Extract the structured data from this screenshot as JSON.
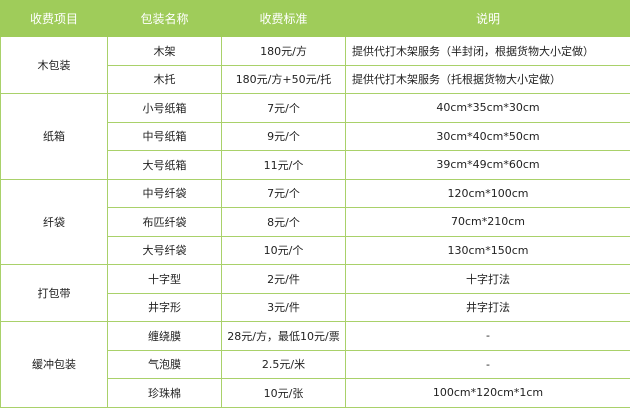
{
  "header": [
    "收费项目",
    "包装名称",
    "收费标准",
    "说明"
  ],
  "groups": [
    {
      "category": "木包装",
      "rows": [
        {
          "name": "木架",
          "price": "180元/方",
          "note": "提供代打木架服务（半封闭，根据货物大小定做）",
          "align": "left"
        },
        {
          "name": "木托",
          "price": "180元/方+50元/托",
          "note": "提供代打木架服务（托根据货物大小定做）",
          "align": "left"
        }
      ]
    },
    {
      "category": "纸箱",
      "rows": [
        {
          "name": "小号纸箱",
          "price": "7元/个",
          "note": "40cm*35cm*30cm"
        },
        {
          "name": "中号纸箱",
          "price": "9元/个",
          "note": "30cm*40cm*50cm"
        },
        {
          "name": "大号纸箱",
          "price": "11元/个",
          "note": "39cm*49cm*60cm"
        }
      ]
    },
    {
      "category": "纤袋",
      "rows": [
        {
          "name": "中号纤袋",
          "price": "7元/个",
          "note": "120cm*100cm"
        },
        {
          "name": "布匹纤袋",
          "price": "8元/个",
          "note": "70cm*210cm"
        },
        {
          "name": "大号纤袋",
          "price": "10元/个",
          "note": "130cm*150cm"
        }
      ]
    },
    {
      "category": "打包带",
      "rows": [
        {
          "name": "十字型",
          "price": "2元/件",
          "note": "十字打法"
        },
        {
          "name": "井字形",
          "price": "3元/件",
          "note": "井字打法"
        }
      ]
    },
    {
      "category": "缓冲包装",
      "rows": [
        {
          "name": "缠绕膜",
          "price": "28元/方，最低10元/票",
          "note": "-"
        },
        {
          "name": "气泡膜",
          "price": "2.5元/米",
          "note": "-"
        },
        {
          "name": "珍珠棉",
          "price": "10元/张",
          "note": "100cm*120cm*1cm"
        }
      ]
    }
  ]
}
